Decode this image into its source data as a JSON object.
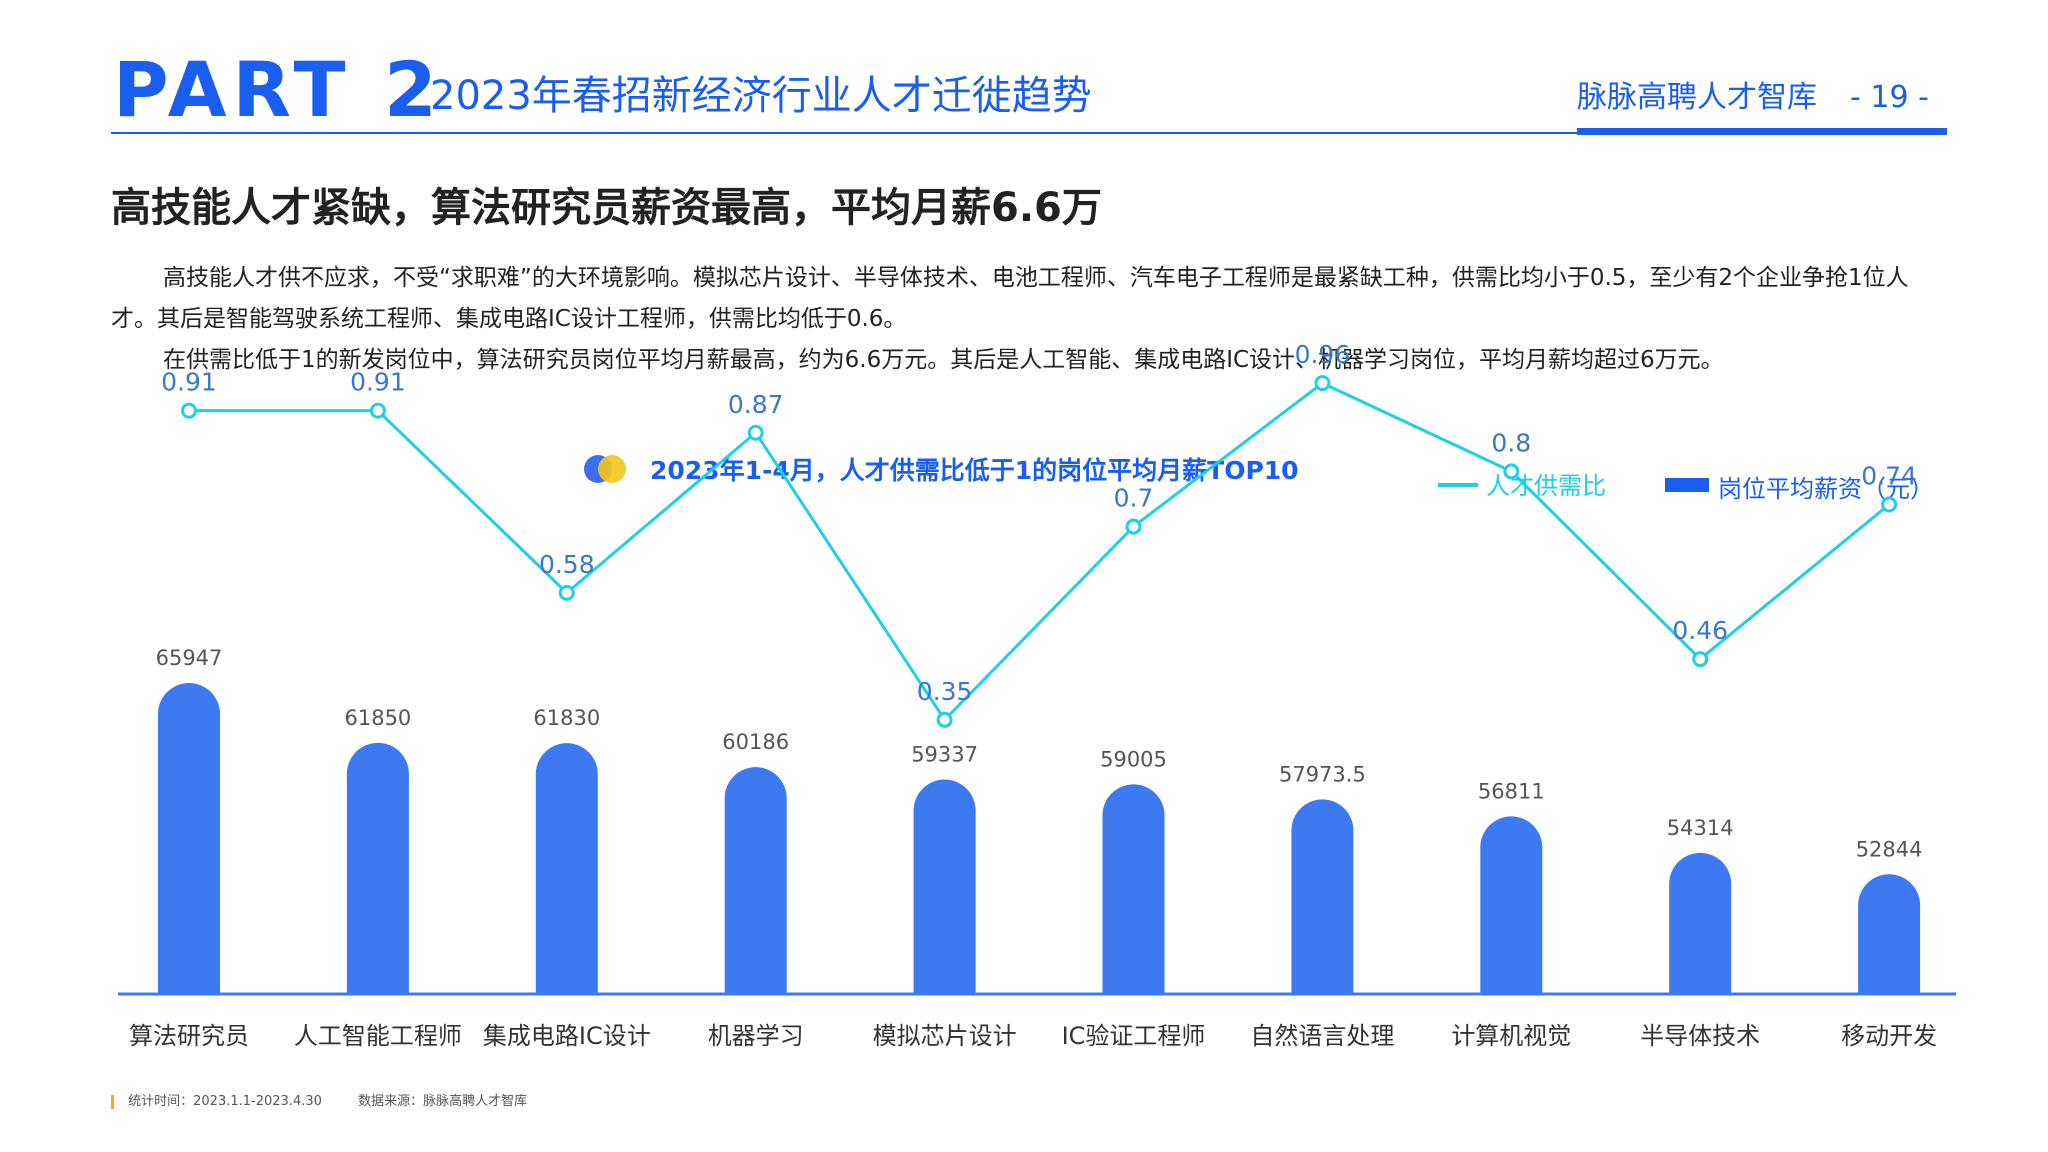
{
  "header": {
    "part": "PART 2",
    "subtitle": "2023年春招新经济行业人才迁徙趋势",
    "brand": "脉脉高聘人才智库",
    "page_number": "- 19 -"
  },
  "headline": "高技能人才紧缺，算法研究员薪资最高，平均月薪6.6万",
  "paragraphs": [
    "高技能人才供不应求，不受“求职难”的大环境影响。模拟芯片设计、半导体技术、电池工程师、汽车电子工程师是最紧缺工种，供需比均小于0.5，至少有2个企业争抢1位人才。其后是智能驾驶系统工程师、集成电路IC设计工程师，供需比均低于0.6。",
    "在供需比低于1的新发岗位中，算法研究员岗位平均月薪最高，约为6.6万元。其后是人工智能、集成电路IC设计、机器学习岗位，平均月薪均超过6万元。"
  ],
  "colors": {
    "brand_blue": "#1a5ef0",
    "bar_blue": "#3d7af2",
    "line_cyan": "#1fd0e2",
    "accent_yellow": "#f5c518"
  },
  "chart_data": {
    "type": "bar",
    "title": "2023年1-4月，人才供需比低于1的岗位平均月薪TOP10",
    "categories": [
      "算法研究员",
      "人工智能工程师",
      "集成电路IC设计",
      "机器学习",
      "模拟芯片设计",
      "IC验证工程师",
      "自然语言处理",
      "计算机视觉",
      "半导体技术",
      "移动开发"
    ],
    "series": [
      {
        "name": "岗位平均薪资（元）",
        "type": "bar",
        "values": [
          65947,
          61850,
          61830,
          60186,
          59337,
          59005,
          57973.5,
          56811,
          54314,
          52844
        ],
        "labels": [
          "65947",
          "61850",
          "61830",
          "60186",
          "59337",
          "59005",
          "57973.5",
          "56811",
          "54314",
          "52844"
        ]
      },
      {
        "name": "人才供需比",
        "type": "line",
        "values": [
          0.91,
          0.91,
          0.58,
          0.87,
          0.35,
          0.7,
          0.96,
          0.8,
          0.46,
          0.74
        ],
        "labels": [
          "0.91",
          "0.91",
          "0.58",
          "0.87",
          "0.35",
          "0.7",
          "0.96",
          "0.8",
          "0.46",
          "0.74"
        ]
      }
    ],
    "legend": "top-right",
    "grid": false
  },
  "footer": {
    "period": "统计时间：2023.1.1-2023.4.30",
    "source": "数据来源：脉脉高聘人才智库"
  }
}
